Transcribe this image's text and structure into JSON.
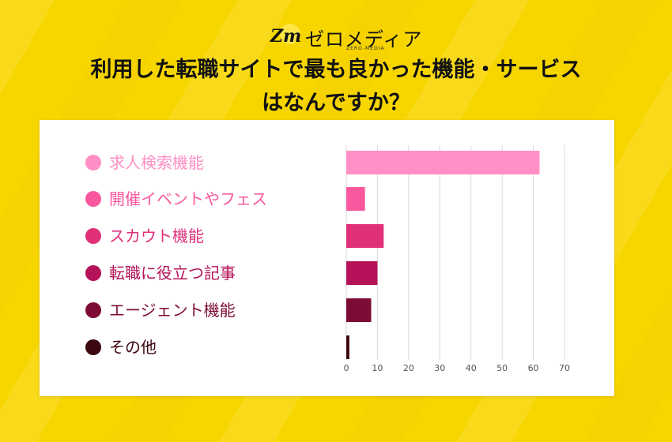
{
  "brand": {
    "logo_mark": "Zm",
    "name": "ゼロメディア",
    "sub": "ZERO-MEDIA"
  },
  "title": {
    "line1": "利用した転職サイトで最も良かった機能・サービス",
    "line2": "はなんですか？"
  },
  "chart_data": {
    "type": "bar",
    "orientation": "horizontal",
    "categories": [
      "求人検索機能",
      "開催イベントやフェス",
      "スカウト機能",
      "転職に役立つ記事",
      "エージェント機能",
      "その他"
    ],
    "values": [
      62,
      6,
      12,
      10,
      8,
      1
    ],
    "colors": [
      "#ff8fc4",
      "#f9579e",
      "#e0307a",
      "#b5125a",
      "#7d0b35",
      "#3d0712"
    ],
    "xlim": [
      0,
      70
    ],
    "xticks": [
      "0",
      "10",
      "20",
      "30",
      "40",
      "50",
      "60",
      "70"
    ],
    "grid": true,
    "legend_position": "left"
  }
}
